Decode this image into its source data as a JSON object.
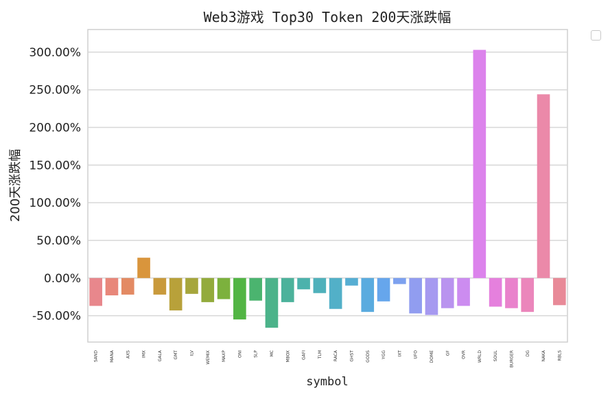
{
  "chart_data": {
    "type": "bar",
    "title": "Web3游戏 Top30 Token 200天涨跌幅",
    "xlabel": "symbol",
    "ylabel": "200天涨跌幅",
    "ylim": [
      -85,
      330
    ],
    "yticks": [
      -50,
      0,
      50,
      100,
      150,
      200,
      250,
      300
    ],
    "ytick_labels": [
      "-50.00%",
      "0.00%",
      "50.00%",
      "100.00%",
      "150.00%",
      "200.00%",
      "250.00%",
      "300.00%"
    ],
    "grid": true,
    "legend": "top-right (empty)",
    "categories": [
      "SAND",
      "MANA",
      "AXS",
      "IMX",
      "GALA",
      "GMT",
      "ILV",
      "WEMIX",
      "MAXP",
      "ONI",
      "SLP",
      "MC",
      "MBOX",
      "GAFI",
      "TLM",
      "RACA",
      "GHST",
      "GODS",
      "YGG",
      "IXT",
      "UFO",
      "DOME",
      "GF",
      "OVR",
      "WRLD",
      "SOUL",
      "BURGER",
      "DG",
      "NAKA",
      "RBLS"
    ],
    "values": [
      -37,
      -23,
      -22,
      27,
      -22,
      -43,
      -21,
      -32,
      -28,
      -55,
      -30,
      -66,
      -32,
      -15,
      -20,
      -41,
      -10,
      -45,
      -31,
      -8,
      -47,
      -49,
      -40,
      -37,
      303,
      -38,
      -40,
      -45,
      244,
      -36
    ],
    "colors": [
      "#e8878c",
      "#e8877a",
      "#e38a63",
      "#d9953c",
      "#c99a3c",
      "#b8a13a",
      "#a6a63c",
      "#93ab3c",
      "#7cb13d",
      "#52b544",
      "#4bb46f",
      "#4cb38a",
      "#4cb29b",
      "#4cb2ac",
      "#4fb1bb",
      "#52b0c8",
      "#56aed3",
      "#5aabdf",
      "#66a6ec",
      "#7da1ef",
      "#919df0",
      "#a699f0",
      "#b993ef",
      "#cc8cf0",
      "#dc83ec",
      "#e580dd",
      "#e982cc",
      "#eb86bb",
      "#eb89a9",
      "#e88a98"
    ]
  }
}
